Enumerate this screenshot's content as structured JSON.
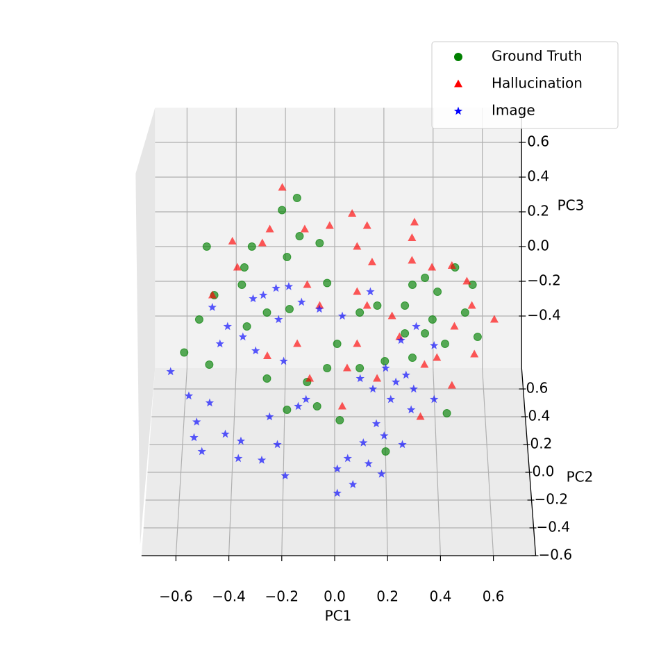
{
  "chart_data": {
    "type": "scatter3d",
    "xlabel": "PC1",
    "ylabel": "PC2",
    "zlabel": "PC3",
    "xlim": [
      -0.73,
      0.76
    ],
    "ylim": [
      -0.6,
      0.75
    ],
    "zlim": [
      -0.7,
      0.8
    ],
    "xticks": [
      {
        "value": -0.6,
        "label": "−0.6"
      },
      {
        "value": -0.4,
        "label": "−0.4"
      },
      {
        "value": -0.2,
        "label": "−0.2"
      },
      {
        "value": 0.0,
        "label": "0.0"
      },
      0.2,
      0.4,
      0.6
    ],
    "yticks": [
      {
        "value": -0.6,
        "label": "−0.6"
      },
      {
        "value": -0.4,
        "label": "−0.4"
      },
      {
        "value": -0.2,
        "label": "−0.2"
      },
      {
        "value": 0.0,
        "label": "0.0"
      },
      0.2,
      0.4,
      0.6
    ],
    "zticks": [
      {
        "value": -0.4,
        "label": "−0.4"
      },
      {
        "value": -0.2,
        "label": "−0.2"
      },
      {
        "value": 0.0,
        "label": "0.0"
      },
      0.2,
      0.4,
      0.6
    ],
    "grid": true,
    "legend": "upper right",
    "series": [
      {
        "name": "Ground Truth",
        "color": "green",
        "marker": "circle",
        "x": [
          -0.51,
          -0.21,
          -0.15,
          -0.33,
          -0.36,
          -0.19,
          -0.06,
          -0.14,
          -0.03,
          -0.48,
          -0.54,
          -0.6,
          -0.5,
          -0.37,
          -0.35,
          -0.27,
          -0.18,
          0.01,
          0.1,
          0.17,
          0.28,
          0.31,
          0.36,
          0.41,
          0.48,
          0.55,
          0.57,
          0.52,
          0.44,
          0.36,
          0.31,
          0.2,
          0.1,
          -0.03,
          -0.11,
          -0.19,
          -0.27,
          -0.07,
          0.02,
          0.2,
          0.44,
          0.28,
          0.39
        ],
        "y": [
          0.4,
          0.4,
          0.4,
          0.4,
          0.4,
          0.4,
          0.4,
          0.4,
          0.4,
          0.4,
          0.4,
          0.4,
          0.4,
          0.4,
          0.4,
          0.4,
          0.4,
          0.4,
          0.4,
          0.4,
          0.4,
          0.4,
          0.4,
          0.4,
          0.4,
          0.4,
          0.4,
          0.4,
          0.4,
          0.4,
          0.4,
          0.4,
          0.4,
          0.4,
          0.4,
          0.4,
          0.4,
          0.4,
          0.1,
          0.1,
          0.1,
          0.4,
          0.4
        ],
        "z": [
          0.28,
          0.49,
          0.56,
          0.28,
          0.16,
          0.22,
          0.3,
          0.34,
          0.07,
          0.0,
          -0.14,
          -0.33,
          -0.4,
          0.06,
          -0.18,
          -0.1,
          -0.08,
          -0.28,
          -0.1,
          -0.06,
          -0.06,
          0.06,
          0.1,
          0.02,
          0.16,
          0.06,
          -0.24,
          -0.1,
          -0.28,
          -0.22,
          -0.36,
          -0.38,
          -0.42,
          -0.42,
          -0.5,
          -0.66,
          -0.48,
          -0.64,
          -0.48,
          -0.66,
          -0.44,
          -0.22,
          -0.14
        ]
      },
      {
        "name": "Hallucination",
        "color": "red",
        "marker": "triangle",
        "x": [
          -0.21,
          -0.26,
          -0.41,
          -0.12,
          -0.02,
          0.07,
          0.13,
          0.32,
          0.31,
          -0.29,
          0.09,
          0.15,
          0.31,
          -0.39,
          -0.11,
          0.09,
          0.39,
          0.47,
          0.53,
          -0.49,
          -0.06,
          0.13,
          0.23,
          0.64,
          0.55,
          0.48,
          -0.15,
          -0.27,
          0.09,
          0.41,
          0.56,
          0.26,
          0.36,
          0.47,
          0.05,
          0.17,
          -0.1,
          0.03,
          0.34
        ],
        "y": [
          0.5,
          0.5,
          0.5,
          0.5,
          0.5,
          0.5,
          0.5,
          0.5,
          0.5,
          0.5,
          0.5,
          0.5,
          0.5,
          0.5,
          0.5,
          0.5,
          0.5,
          0.5,
          0.5,
          0.5,
          0.5,
          0.5,
          0.5,
          0.5,
          0.5,
          0.5,
          0.5,
          0.5,
          0.5,
          0.5,
          0.5,
          0.5,
          0.5,
          0.5,
          0.5,
          0.5,
          0.5,
          0.3,
          0.3
        ],
        "z": [
          0.54,
          0.3,
          0.23,
          0.3,
          0.32,
          0.39,
          0.32,
          0.34,
          0.25,
          0.22,
          0.2,
          0.11,
          0.12,
          0.08,
          -0.02,
          -0.06,
          0.08,
          0.09,
          0.0,
          -0.08,
          -0.14,
          -0.14,
          -0.2,
          -0.22,
          -0.14,
          -0.26,
          -0.36,
          -0.43,
          -0.36,
          -0.44,
          -0.42,
          -0.32,
          -0.48,
          -0.6,
          -0.5,
          -0.56,
          -0.56,
          -0.56,
          -0.62
        ]
      },
      {
        "name": "Image",
        "color": "blue",
        "marker": "star",
        "x": [
          -0.48,
          -0.42,
          -0.32,
          -0.28,
          -0.23,
          -0.18,
          -0.13,
          -0.22,
          -0.36,
          -0.45,
          -0.31,
          -0.2,
          -0.06,
          0.03,
          0.14,
          0.26,
          0.32,
          0.39,
          0.2,
          0.28,
          0.15,
          0.31,
          0.24,
          0.1,
          0.22,
          0.3,
          0.39,
          -0.63,
          -0.56,
          -0.53,
          -0.54,
          -0.48,
          -0.42,
          -0.36,
          -0.51,
          -0.37,
          -0.28,
          -0.19,
          -0.22,
          -0.25,
          -0.14,
          0.01,
          0.07,
          0.01,
          0.05,
          0.13,
          0.18,
          0.19,
          0.11,
          0.16,
          -0.11,
          0.26
        ],
        "y": [
          0.1,
          0.1,
          0.1,
          0.1,
          0.1,
          0.1,
          0.1,
          0.1,
          0.1,
          0.1,
          0.1,
          0.1,
          0.1,
          0.1,
          0.1,
          0.1,
          0.1,
          0.1,
          0.1,
          0.1,
          0.1,
          0.1,
          0.1,
          0.1,
          0.1,
          0.1,
          0.1,
          -0.3,
          -0.3,
          -0.3,
          -0.3,
          -0.3,
          -0.3,
          -0.3,
          -0.3,
          -0.3,
          -0.3,
          -0.3,
          -0.3,
          -0.3,
          -0.3,
          -0.3,
          -0.3,
          -0.3,
          -0.3,
          -0.3,
          -0.3,
          -0.3,
          -0.3,
          -0.3,
          -0.3,
          -0.3
        ],
        "z": [
          0.17,
          0.06,
          0.22,
          0.24,
          0.28,
          0.29,
          0.2,
          0.1,
          0.0,
          -0.04,
          -0.08,
          -0.14,
          0.16,
          0.12,
          0.26,
          -0.02,
          0.06,
          -0.05,
          -0.18,
          -0.22,
          -0.3,
          -0.3,
          -0.26,
          -0.24,
          -0.36,
          -0.42,
          -0.36,
          0.12,
          -0.02,
          -0.17,
          -0.26,
          -0.06,
          -0.24,
          -0.28,
          -0.34,
          -0.38,
          -0.39,
          -0.48,
          -0.3,
          -0.14,
          -0.08,
          -0.44,
          -0.53,
          -0.58,
          -0.38,
          -0.41,
          -0.47,
          -0.25,
          -0.29,
          -0.18,
          -0.04,
          -0.3
        ]
      }
    ]
  }
}
